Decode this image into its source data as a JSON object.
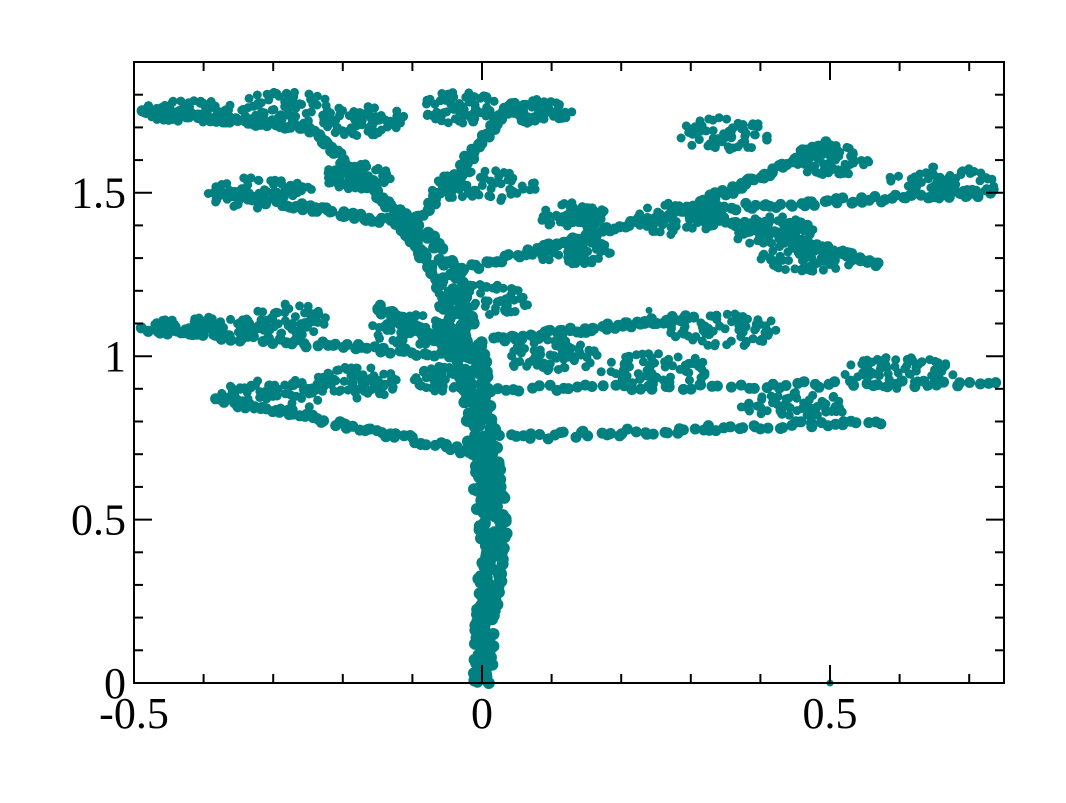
{
  "chart_data": {
    "type": "scatter",
    "title": "",
    "xlabel": "",
    "ylabel": "",
    "xlim": [
      -0.5,
      0.75
    ],
    "ylim": [
      0,
      1.9
    ],
    "x_ticks": [
      -0.5,
      0,
      0.5
    ],
    "x_tick_labels": [
      "-0.5",
      "0",
      "0.5"
    ],
    "y_ticks": [
      0,
      0.5,
      1,
      1.5
    ],
    "y_tick_labels": [
      "0",
      "0.5",
      "1",
      "1.5"
    ],
    "x_minor_step": 0.1,
    "y_minor_step": 0.1,
    "grid": false,
    "legend": "none",
    "marker_color": "#008080",
    "description_shape": "fractal-tree",
    "trunk": [
      {
        "x": 0.0,
        "y": 0.0
      },
      {
        "x": 0.005,
        "y": 0.15
      },
      {
        "x": 0.01,
        "y": 0.3
      },
      {
        "x": 0.015,
        "y": 0.45
      },
      {
        "x": 0.01,
        "y": 0.6
      },
      {
        "x": 0.0,
        "y": 0.75
      },
      {
        "x": -0.01,
        "y": 0.9
      },
      {
        "x": -0.02,
        "y": 1.05
      },
      {
        "x": -0.05,
        "y": 1.25
      },
      {
        "x": -0.1,
        "y": 1.4
      }
    ],
    "branches": [
      {
        "from": [
          0.0,
          0.7
        ],
        "to": [
          -0.38,
          0.87
        ]
      },
      {
        "from": [
          0.02,
          0.75
        ],
        "to": [
          0.57,
          0.8
        ]
      },
      {
        "from": [
          0.02,
          0.9
        ],
        "to": [
          0.74,
          0.92
        ]
      },
      {
        "from": [
          -0.02,
          1.0
        ],
        "to": [
          -0.49,
          1.08
        ]
      },
      {
        "from": [
          -0.02,
          1.0
        ],
        "to": [
          -0.15,
          1.15
        ]
      },
      {
        "from": [
          0.02,
          1.05
        ],
        "to": [
          0.3,
          1.12
        ]
      },
      {
        "from": [
          -0.05,
          1.25
        ],
        "to": [
          0.3,
          1.45
        ]
      },
      {
        "from": [
          0.3,
          1.45
        ],
        "to": [
          0.74,
          1.5
        ]
      },
      {
        "from": [
          0.3,
          1.45
        ],
        "to": [
          0.57,
          1.28
        ]
      },
      {
        "from": [
          0.3,
          1.45
        ],
        "to": [
          0.5,
          1.65
        ]
      },
      {
        "from": [
          -0.1,
          1.4
        ],
        "to": [
          -0.38,
          1.5
        ]
      },
      {
        "from": [
          -0.1,
          1.4
        ],
        "to": [
          -0.25,
          1.7
        ]
      },
      {
        "from": [
          -0.1,
          1.4
        ],
        "to": [
          0.05,
          1.78
        ]
      },
      {
        "from": [
          -0.25,
          1.7
        ],
        "to": [
          -0.49,
          1.75
        ]
      }
    ],
    "foliage_clusters": [
      {
        "x": -0.42,
        "y": 1.75,
        "rx": 0.07,
        "ry": 0.035
      },
      {
        "x": -0.28,
        "y": 1.76,
        "rx": 0.07,
        "ry": 0.05
      },
      {
        "x": -0.17,
        "y": 1.72,
        "rx": 0.06,
        "ry": 0.05
      },
      {
        "x": -0.03,
        "y": 1.76,
        "rx": 0.06,
        "ry": 0.05
      },
      {
        "x": 0.08,
        "y": 1.75,
        "rx": 0.05,
        "ry": 0.04
      },
      {
        "x": -0.32,
        "y": 1.5,
        "rx": 0.08,
        "ry": 0.05
      },
      {
        "x": -0.18,
        "y": 1.55,
        "rx": 0.05,
        "ry": 0.04
      },
      {
        "x": 0.0,
        "y": 1.52,
        "rx": 0.08,
        "ry": 0.05
      },
      {
        "x": 0.13,
        "y": 1.43,
        "rx": 0.05,
        "ry": 0.04
      },
      {
        "x": 0.35,
        "y": 1.68,
        "rx": 0.07,
        "ry": 0.05
      },
      {
        "x": 0.5,
        "y": 1.6,
        "rx": 0.06,
        "ry": 0.05
      },
      {
        "x": 0.66,
        "y": 1.53,
        "rx": 0.08,
        "ry": 0.05
      },
      {
        "x": 0.28,
        "y": 1.42,
        "rx": 0.06,
        "ry": 0.05
      },
      {
        "x": 0.42,
        "y": 1.38,
        "rx": 0.06,
        "ry": 0.05
      },
      {
        "x": 0.13,
        "y": 1.32,
        "rx": 0.06,
        "ry": 0.04
      },
      {
        "x": 0.47,
        "y": 1.3,
        "rx": 0.07,
        "ry": 0.04
      },
      {
        "x": -0.4,
        "y": 1.09,
        "rx": 0.08,
        "ry": 0.03
      },
      {
        "x": -0.28,
        "y": 1.11,
        "rx": 0.06,
        "ry": 0.05
      },
      {
        "x": -0.1,
        "y": 1.08,
        "rx": 0.06,
        "ry": 0.05
      },
      {
        "x": 0.0,
        "y": 1.17,
        "rx": 0.07,
        "ry": 0.05
      },
      {
        "x": -0.3,
        "y": 0.88,
        "rx": 0.08,
        "ry": 0.05
      },
      {
        "x": -0.18,
        "y": 0.92,
        "rx": 0.06,
        "ry": 0.05
      },
      {
        "x": -0.05,
        "y": 0.93,
        "rx": 0.05,
        "ry": 0.04
      },
      {
        "x": 0.25,
        "y": 0.96,
        "rx": 0.08,
        "ry": 0.05
      },
      {
        "x": 0.35,
        "y": 1.08,
        "rx": 0.08,
        "ry": 0.05
      },
      {
        "x": 0.45,
        "y": 0.85,
        "rx": 0.08,
        "ry": 0.04
      },
      {
        "x": 0.6,
        "y": 0.95,
        "rx": 0.08,
        "ry": 0.05
      },
      {
        "x": 0.1,
        "y": 1.0,
        "rx": 0.07,
        "ry": 0.05
      }
    ],
    "outlier_points": [
      {
        "x": -0.07,
        "y": 1.0
      },
      {
        "x": 0.24,
        "y": 1.14
      },
      {
        "x": 0.5,
        "y": 0.0
      }
    ]
  }
}
